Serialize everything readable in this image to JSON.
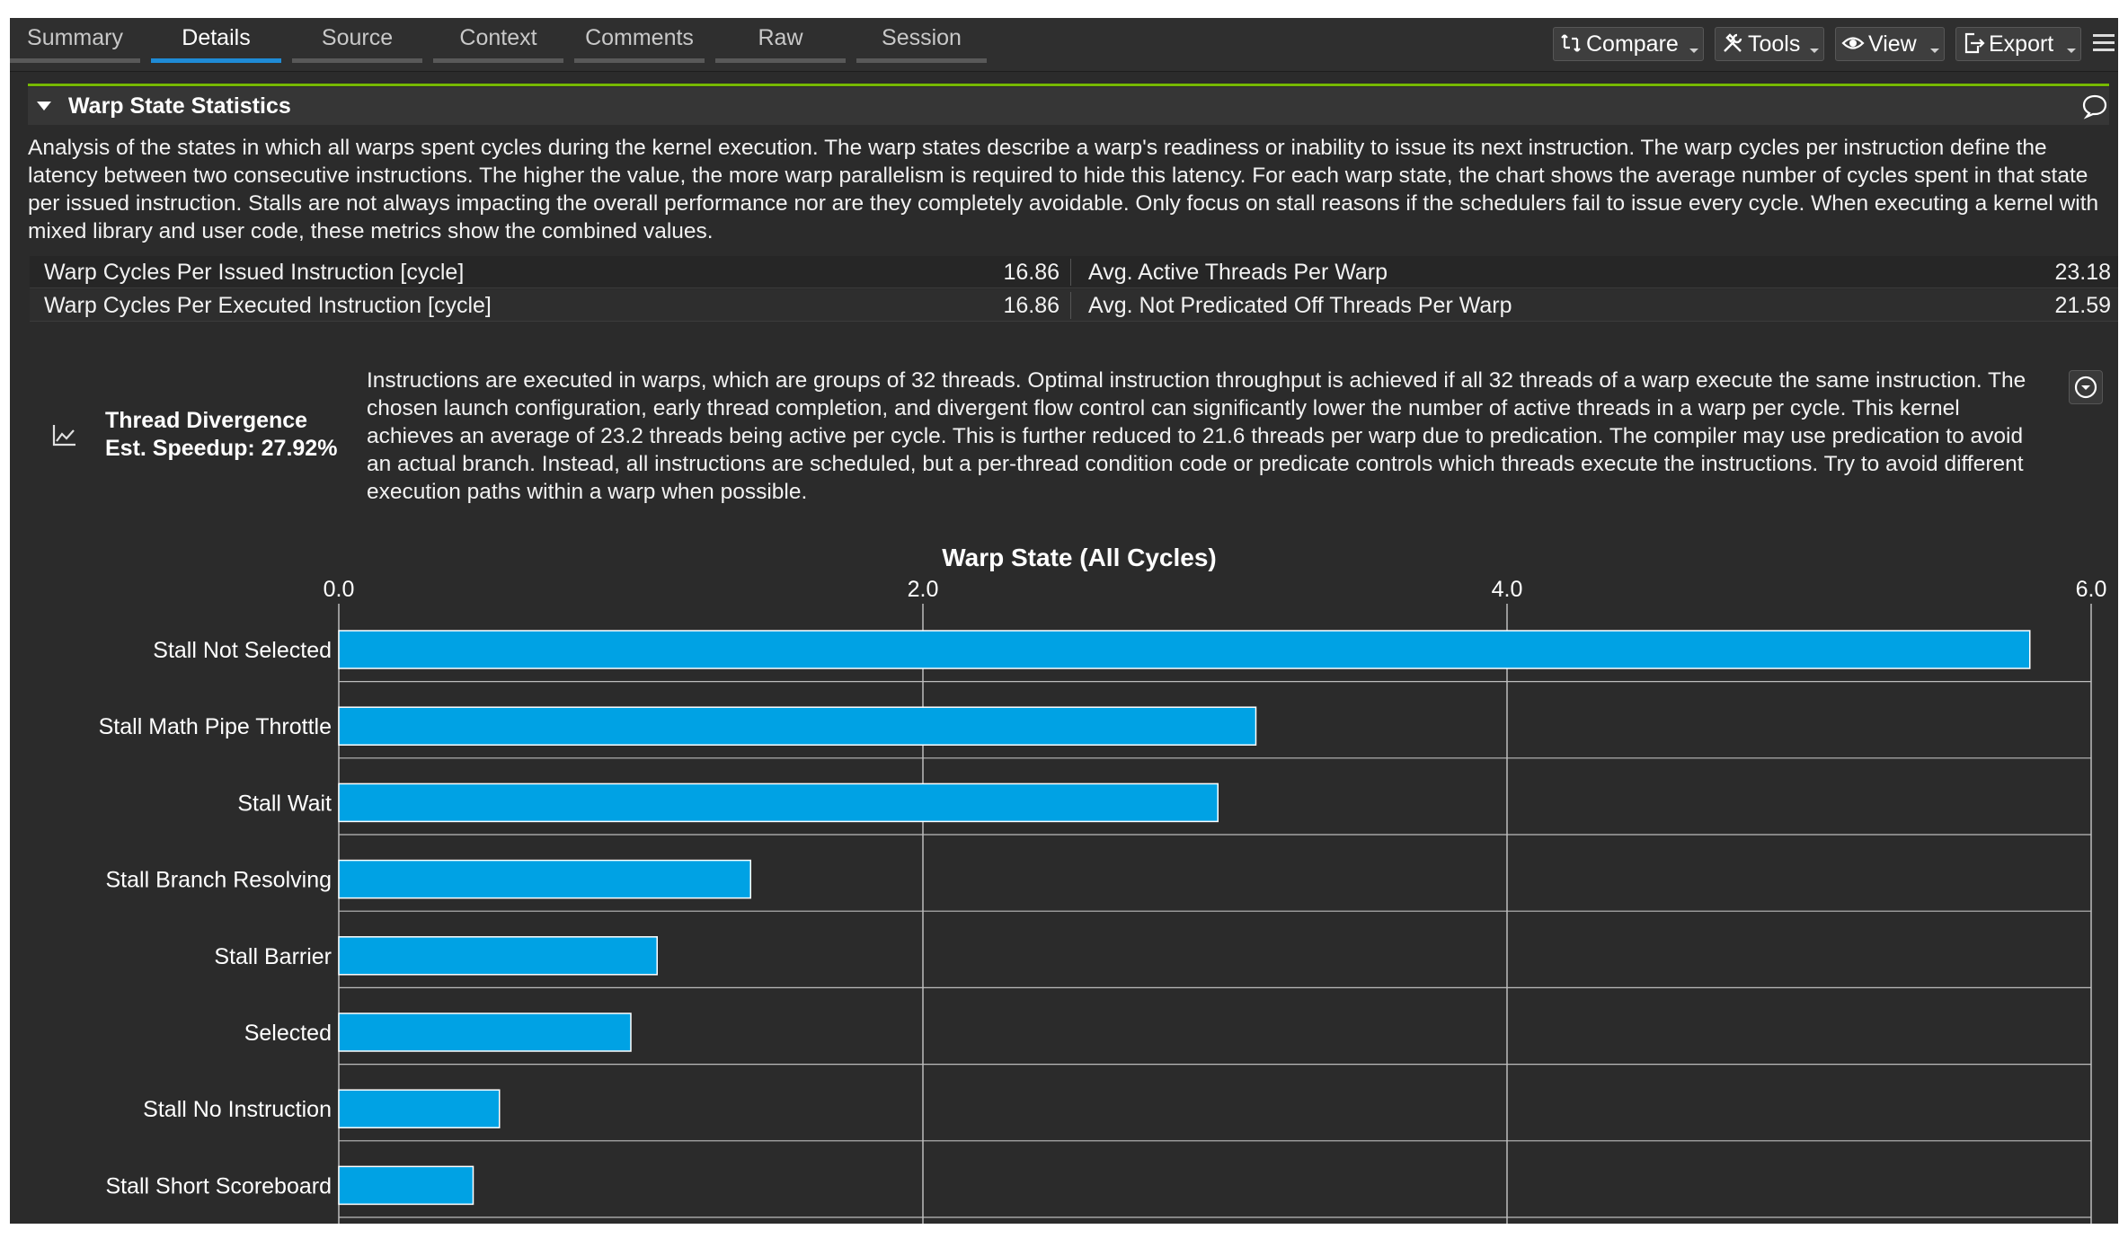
{
  "tabs": [
    "Summary",
    "Details",
    "Source",
    "Context",
    "Comments",
    "Raw",
    "Session"
  ],
  "active_tab": "Details",
  "toolbar": {
    "compare_label": "Compare",
    "tools_label": "Tools",
    "view_label": "View",
    "export_label": "Export"
  },
  "section": {
    "title": "Warp State Statistics",
    "description": "Analysis of the states in which all warps spent cycles during the kernel execution. The warp states describe a warp's readiness or inability to issue its next instruction. The warp cycles per instruction define the latency between two consecutive instructions. The higher the value, the more warp parallelism is required to hide this latency. For each warp state, the chart shows the average number of cycles spent in that state per issued instruction. Stalls are not always impacting the overall performance nor are they completely avoidable. Only focus on stall reasons if the schedulers fail to issue every cycle. When executing a kernel with mixed library and user code, these metrics show the combined values."
  },
  "metrics": [
    {
      "label": "Warp Cycles Per Issued Instruction [cycle]",
      "value": "16.86",
      "label2": "Avg. Active Threads Per Warp",
      "value2": "23.18"
    },
    {
      "label": "Warp Cycles Per Executed Instruction [cycle]",
      "value": "16.86",
      "label2": "Avg. Not Predicated Off Threads Per Warp",
      "value2": "21.59"
    }
  ],
  "rule": {
    "name": "Thread Divergence",
    "speedup": "Est. Speedup: 27.92%",
    "text": "Instructions are executed in warps, which are groups of 32 threads. Optimal instruction throughput is achieved if all 32 threads of a warp execute the same instruction. The chosen launch configuration, early thread completion, and divergent flow control can significantly lower the number of active threads in a warp per cycle. This kernel achieves an average of 23.2 threads being active per cycle. This is further reduced to 21.6 threads per warp due to predication. The compiler may use predication to avoid an actual branch. Instead, all instructions are scheduled, but a per-thread condition code or predicate controls which threads execute the instructions. Try to avoid different execution paths within a warp when possible."
  },
  "colors": {
    "bar": "#00a2e4",
    "accent": "#76b900",
    "grid": "#bdbdbd"
  },
  "chart_data": {
    "type": "bar",
    "orientation": "horizontal",
    "title": "Warp State (All Cycles)",
    "xlabel": "",
    "ylabel": "",
    "xlim": [
      0,
      6
    ],
    "ticks": [
      0,
      2,
      4,
      6
    ],
    "tick_labels": [
      "0.0",
      "2.0",
      "4.0",
      "6.0"
    ],
    "grid": true,
    "categories": [
      "Stall Not Selected",
      "Stall Math Pipe Throttle",
      "Stall Wait",
      "Stall Branch Resolving",
      "Stall Barrier",
      "Selected",
      "Stall No Instruction",
      "Stall Short Scoreboard"
    ],
    "values": [
      5.79,
      3.14,
      3.01,
      1.41,
      1.09,
      1.0,
      0.55,
      0.46
    ]
  }
}
